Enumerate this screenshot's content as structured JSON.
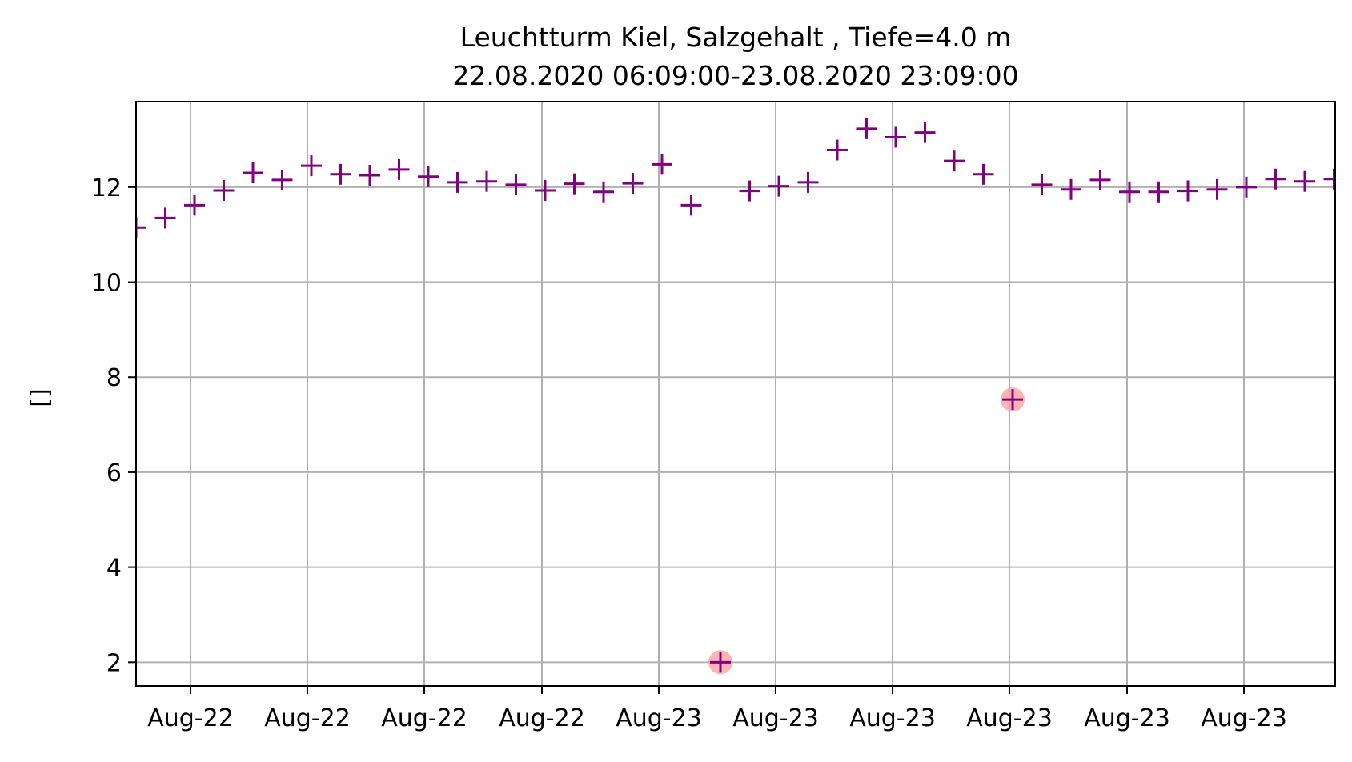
{
  "chart_data": {
    "type": "scatter",
    "title": "Leuchtturm Kiel, Salzgehalt , Tiefe=4.0 m",
    "subtitle": "22.08.2020 06:09:00-23.08.2020 23:09:00",
    "xlabel": "",
    "ylabel": "[]",
    "x_tick_labels": [
      "Aug-22",
      "Aug-22",
      "Aug-22",
      "Aug-22",
      "Aug-23",
      "Aug-23",
      "Aug-23",
      "Aug-23",
      "Aug-23",
      "Aug-23"
    ],
    "yticks": [
      2,
      4,
      6,
      8,
      10,
      12
    ],
    "ylim": [
      1.5,
      13.8
    ],
    "grid": true,
    "marker": "+",
    "colors": {
      "series": "#800080",
      "flag": "#ff9999",
      "grid": "#b0b0b0",
      "axes": "#000000"
    },
    "series": [
      {
        "values": [
          11.15,
          11.35,
          11.62,
          11.93,
          12.3,
          12.15,
          12.45,
          12.27,
          12.25,
          12.37,
          12.22,
          12.1,
          12.12,
          12.05,
          11.93,
          12.07,
          11.9,
          12.08,
          12.48,
          11.62,
          null,
          11.92,
          12.02,
          12.1,
          12.78,
          13.23,
          13.05,
          13.15,
          12.55,
          12.27,
          null,
          12.05,
          11.95,
          12.15,
          11.9,
          11.9,
          11.92,
          11.95,
          12.0,
          12.17,
          12.12,
          12.17
        ]
      }
    ],
    "flagged_points": [
      {
        "index": 20,
        "value": 2.0
      },
      {
        "index": 30,
        "value": 7.53
      }
    ]
  }
}
